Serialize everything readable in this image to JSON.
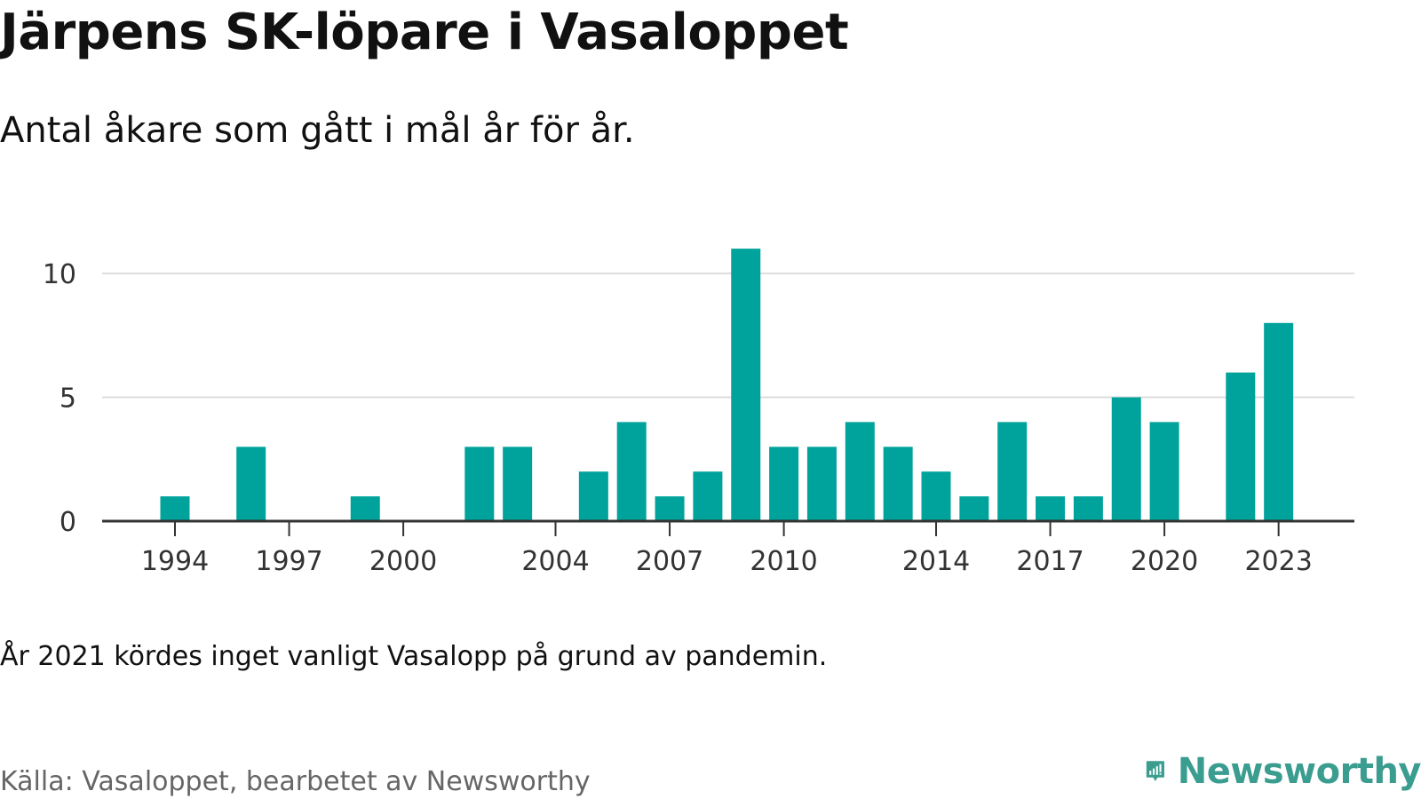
{
  "header": {
    "title": "Järpens SK-löpare i Vasaloppet",
    "subtitle": "Antal åkare som gått i mål år för år."
  },
  "footer": {
    "note": "År 2021 kördes inget vanligt Vasalopp på grund av pandemin.",
    "source": "Källa: Vasaloppet, bearbetet av Newsworthy",
    "brand": "Newsworthy"
  },
  "colors": {
    "bar": "#00a39b",
    "grid": "#dddddd",
    "axis": "#333333",
    "brand": "#3a9d8f"
  },
  "icons": {
    "brand_logo": "newsworthy-logo-icon"
  },
  "chart_data": {
    "type": "bar",
    "title": "Järpens SK-löpare i Vasaloppet",
    "subtitle": "Antal åkare som gått i mål år för år.",
    "xlabel": "",
    "ylabel": "",
    "x": [
      1994,
      1995,
      1996,
      1997,
      1998,
      1999,
      2000,
      2001,
      2002,
      2003,
      2004,
      2005,
      2006,
      2007,
      2008,
      2009,
      2010,
      2011,
      2012,
      2013,
      2014,
      2015,
      2016,
      2017,
      2018,
      2019,
      2020,
      2021,
      2022,
      2023
    ],
    "values": [
      1,
      0,
      3,
      0,
      0,
      1,
      0,
      0,
      3,
      3,
      0,
      2,
      4,
      1,
      2,
      11,
      3,
      3,
      4,
      3,
      2,
      1,
      4,
      1,
      1,
      5,
      4,
      0,
      6,
      8
    ],
    "xticks": [
      "1994",
      "1997",
      "2000",
      "2004",
      "2007",
      "2010",
      "2014",
      "2017",
      "2020",
      "2023"
    ],
    "yticks": [
      "0",
      "5",
      "10"
    ],
    "xlim": [
      1993,
      2025
    ],
    "ylim": [
      0,
      11
    ],
    "grid": "horizontal",
    "legend": "none"
  }
}
